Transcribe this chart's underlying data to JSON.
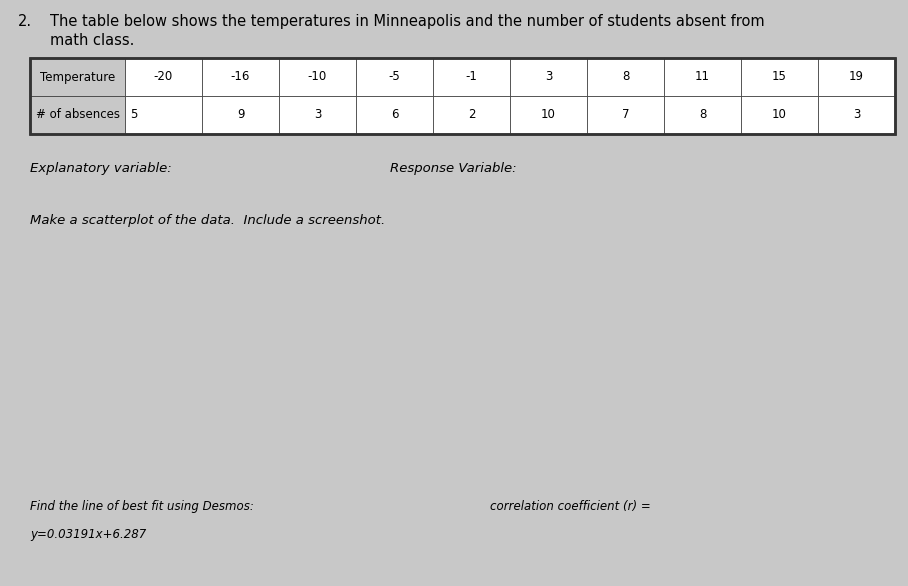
{
  "background_color": "#c8c8c8",
  "table_bg": "#ffffff",
  "header_bg": "#e0e0e0",
  "text_color": "#000000",
  "border_color": "#333333",
  "title_number": "2.",
  "title_line1": "The table below shows the temperatures in Minneapolis and the number of students absent from",
  "title_line2": "math class.",
  "table_headers": [
    "Temperature",
    "-20",
    "-16",
    "-10",
    "-5",
    "-1",
    "3",
    "8",
    "11",
    "15",
    "19"
  ],
  "table_row2_label": "# of absences",
  "table_row2_values": [
    "5",
    "9",
    "3",
    "6",
    "2",
    "10",
    "7",
    "8",
    "10",
    "3"
  ],
  "explanatory_label": "Explanatory variable:",
  "response_label": "Response Variable:",
  "scatterplot_label": "Make a scatterplot of the data.  Include a screenshot.",
  "find_line_label": "Find the line of best fit using Desmos:",
  "equation_label": "y=0.03191x+6.287",
  "correlation_label": "correlation coefficient (r) =",
  "title_fontsize": 10.5,
  "body_fontsize": 9.5,
  "small_fontsize": 8.5,
  "table_fontsize": 8.5
}
